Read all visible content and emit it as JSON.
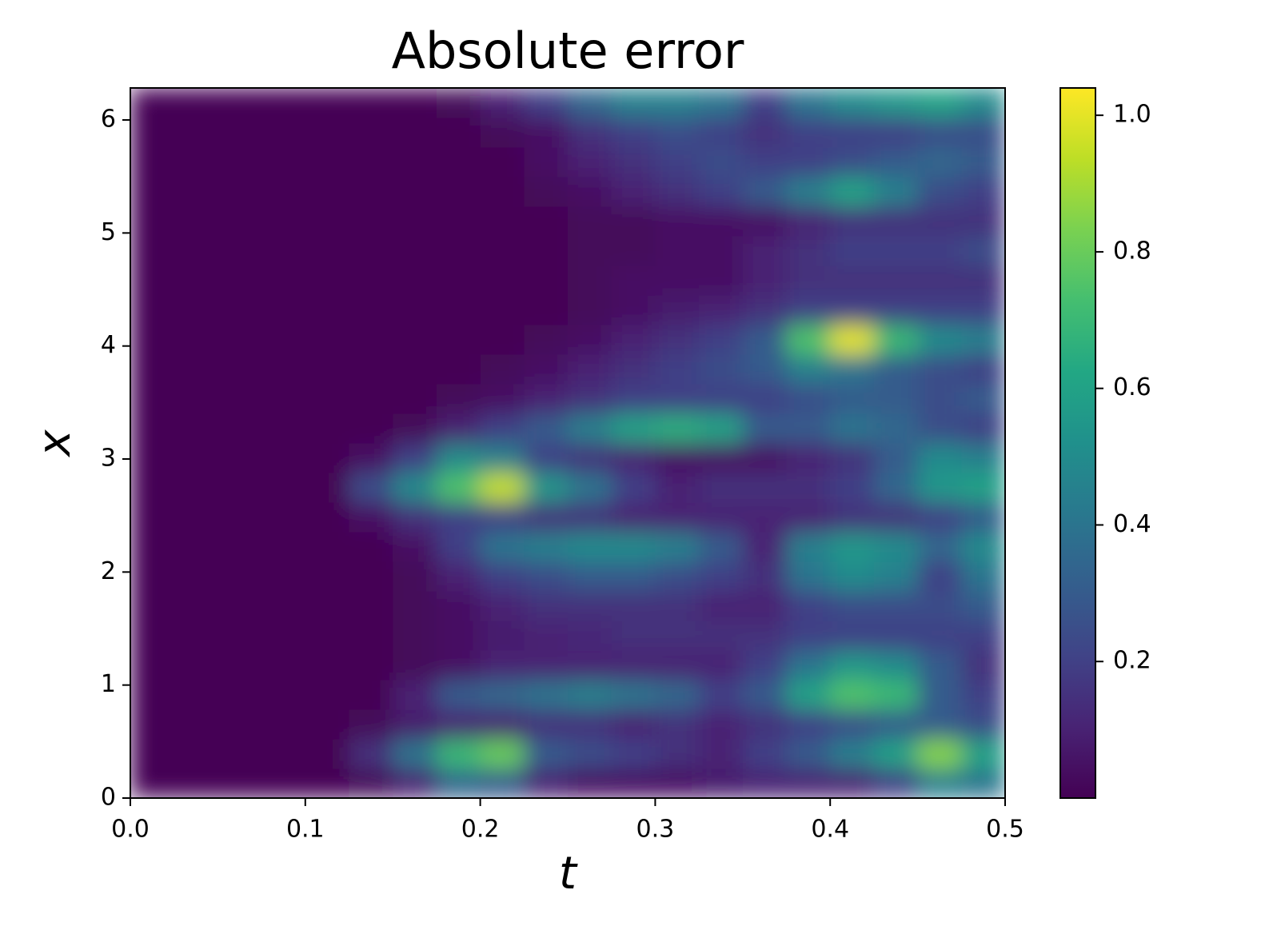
{
  "chart_data": {
    "type": "heatmap",
    "title": "Absolute error",
    "xlabel": "t",
    "ylabel": "x",
    "colormap": "viridis",
    "t": [
      0.0125,
      0.0375,
      0.0625,
      0.0875,
      0.1125,
      0.1375,
      0.1625,
      0.1875,
      0.2125,
      0.2375,
      0.2625,
      0.2875,
      0.3125,
      0.3375,
      0.3625,
      0.3875,
      0.4125,
      0.4375,
      0.4625,
      0.4875
    ],
    "x": [
      0.131,
      0.393,
      0.654,
      0.916,
      1.178,
      1.44,
      1.701,
      1.963,
      2.225,
      2.487,
      2.749,
      3.011,
      3.272,
      3.534,
      3.796,
      4.058,
      4.32,
      4.581,
      4.843,
      5.105,
      5.367,
      5.629,
      5.89,
      6.152
    ],
    "values": [
      [
        0,
        0,
        0,
        0,
        0,
        0.02,
        0.1,
        0.35,
        0.3,
        0.1,
        0.05,
        0.05,
        0.05,
        0.08,
        0.1,
        0.1,
        0.1,
        0.2,
        0.45,
        0.4
      ],
      [
        0,
        0,
        0,
        0,
        0,
        0.15,
        0.4,
        0.7,
        0.8,
        0.3,
        0.25,
        0.2,
        0.15,
        0.1,
        0.2,
        0.3,
        0.45,
        0.6,
        0.85,
        0.6
      ],
      [
        0,
        0,
        0,
        0,
        0,
        0.02,
        0.08,
        0.1,
        0.1,
        0.15,
        0.15,
        0.1,
        0.15,
        0.1,
        0.15,
        0.2,
        0.25,
        0.3,
        0.3,
        0.25
      ],
      [
        0,
        0,
        0,
        0,
        0,
        0,
        0.1,
        0.3,
        0.35,
        0.4,
        0.45,
        0.4,
        0.35,
        0.2,
        0.3,
        0.6,
        0.75,
        0.7,
        0.3,
        0.2
      ],
      [
        0,
        0,
        0,
        0,
        0,
        0,
        0.02,
        0.05,
        0.1,
        0.1,
        0.1,
        0.1,
        0.1,
        0.1,
        0.2,
        0.4,
        0.55,
        0.5,
        0.3,
        0.15
      ],
      [
        0,
        0,
        0,
        0,
        0,
        0,
        0.02,
        0.05,
        0.08,
        0.1,
        0.12,
        0.15,
        0.15,
        0.15,
        0.15,
        0.2,
        0.2,
        0.2,
        0.2,
        0.2
      ],
      [
        0,
        0,
        0,
        0,
        0,
        0,
        0.02,
        0.05,
        0.1,
        0.15,
        0.15,
        0.15,
        0.15,
        0.1,
        0.1,
        0.2,
        0.25,
        0.25,
        0.25,
        0.3
      ],
      [
        0,
        0,
        0,
        0,
        0,
        0,
        0.02,
        0.1,
        0.2,
        0.25,
        0.3,
        0.3,
        0.25,
        0.2,
        0.15,
        0.4,
        0.5,
        0.45,
        0.2,
        0.4
      ],
      [
        0,
        0,
        0,
        0,
        0,
        0,
        0.05,
        0.2,
        0.4,
        0.45,
        0.5,
        0.5,
        0.45,
        0.3,
        0.1,
        0.45,
        0.55,
        0.5,
        0.35,
        0.5
      ],
      [
        0,
        0,
        0,
        0,
        0,
        0.05,
        0.15,
        0.2,
        0.2,
        0.15,
        0.15,
        0.1,
        0.1,
        0.1,
        0.1,
        0.1,
        0.15,
        0.15,
        0.2,
        0.3
      ],
      [
        0,
        0,
        0,
        0,
        0,
        0.25,
        0.5,
        0.75,
        0.95,
        0.55,
        0.4,
        0.2,
        0.1,
        0.15,
        0.15,
        0.15,
        0.2,
        0.35,
        0.55,
        0.6
      ],
      [
        0,
        0,
        0,
        0,
        0,
        0.05,
        0.2,
        0.5,
        0.45,
        0.2,
        0.15,
        0.1,
        0.05,
        0.05,
        0.05,
        0.1,
        0.15,
        0.3,
        0.5,
        0.45
      ],
      [
        0,
        0,
        0,
        0,
        0,
        0,
        0.02,
        0.1,
        0.2,
        0.3,
        0.45,
        0.6,
        0.65,
        0.6,
        0.3,
        0.3,
        0.4,
        0.35,
        0.25,
        0.2
      ],
      [
        0,
        0,
        0,
        0,
        0,
        0,
        0,
        0.02,
        0.05,
        0.1,
        0.15,
        0.2,
        0.2,
        0.2,
        0.2,
        0.25,
        0.3,
        0.3,
        0.25,
        0.3
      ],
      [
        0,
        0,
        0,
        0,
        0,
        0,
        0,
        0,
        0.02,
        0.05,
        0.1,
        0.15,
        0.2,
        0.25,
        0.3,
        0.45,
        0.4,
        0.3,
        0.25,
        0.2
      ],
      [
        0,
        0,
        0,
        0,
        0,
        0,
        0,
        0,
        0,
        0.02,
        0.05,
        0.1,
        0.15,
        0.2,
        0.3,
        0.75,
        1.0,
        0.7,
        0.5,
        0.45
      ],
      [
        0,
        0,
        0,
        0,
        0,
        0,
        0,
        0,
        0,
        0,
        0.02,
        0.05,
        0.08,
        0.1,
        0.15,
        0.2,
        0.2,
        0.2,
        0.2,
        0.2
      ],
      [
        0,
        0,
        0,
        0,
        0,
        0,
        0,
        0,
        0,
        0,
        0.02,
        0.05,
        0.05,
        0.05,
        0.1,
        0.15,
        0.15,
        0.15,
        0.15,
        0.15
      ],
      [
        0,
        0,
        0,
        0,
        0,
        0,
        0,
        0,
        0,
        0,
        0.02,
        0.02,
        0.05,
        0.05,
        0.1,
        0.15,
        0.2,
        0.2,
        0.2,
        0.25
      ],
      [
        0,
        0,
        0,
        0,
        0,
        0,
        0,
        0,
        0,
        0,
        0.02,
        0.02,
        0.05,
        0.05,
        0.05,
        0.1,
        0.15,
        0.15,
        0.15,
        0.15
      ],
      [
        0,
        0,
        0,
        0,
        0,
        0,
        0,
        0,
        0,
        0.02,
        0.05,
        0.1,
        0.15,
        0.2,
        0.3,
        0.45,
        0.6,
        0.45,
        0.25,
        0.2
      ],
      [
        0,
        0,
        0,
        0,
        0,
        0,
        0,
        0,
        0,
        0.05,
        0.1,
        0.15,
        0.2,
        0.25,
        0.2,
        0.2,
        0.25,
        0.3,
        0.35,
        0.3
      ],
      [
        0,
        0,
        0,
        0,
        0,
        0,
        0,
        0,
        0.02,
        0.05,
        0.15,
        0.2,
        0.25,
        0.2,
        0.15,
        0.2,
        0.2,
        0.2,
        0.25,
        0.25
      ],
      [
        0,
        0,
        0,
        0,
        0,
        0,
        0,
        0.02,
        0.1,
        0.2,
        0.35,
        0.45,
        0.45,
        0.4,
        0.2,
        0.4,
        0.5,
        0.55,
        0.6,
        0.5
      ]
    ],
    "xlim": [
      0,
      0.5
    ],
    "ylim": [
      0,
      6.2832
    ],
    "xticks": [
      {
        "value": 0,
        "label": "0.0"
      },
      0.1,
      0.2,
      0.3,
      0.4,
      0.5
    ],
    "yticks": [
      0,
      1,
      2,
      3,
      4,
      5,
      6
    ],
    "clim": [
      0,
      1.04
    ],
    "cticks": [
      0.2,
      0.4,
      0.6,
      0.8,
      {
        "value": 1,
        "label": "1.0"
      }
    ]
  }
}
